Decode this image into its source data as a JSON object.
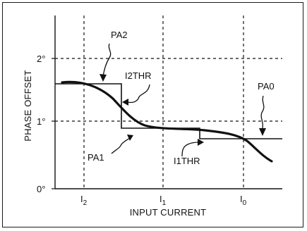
{
  "axes": {
    "x_title": "INPUT CURRENT",
    "y_title": "PHASE OFFSET",
    "x_ticks": [
      {
        "main": "I",
        "sub": "2"
      },
      {
        "main": "I",
        "sub": "1"
      },
      {
        "main": "I",
        "sub": "0"
      }
    ],
    "y_ticks": [
      "0°",
      "1°",
      "2°"
    ]
  },
  "annotations": {
    "pa2": "PA2",
    "i2thr": "I2THR",
    "pa1": "PA1",
    "i1thr": "I1THR",
    "pa0": "PA0"
  },
  "colors": {
    "ink": "#111111",
    "frame": "#1a1a1a"
  }
}
